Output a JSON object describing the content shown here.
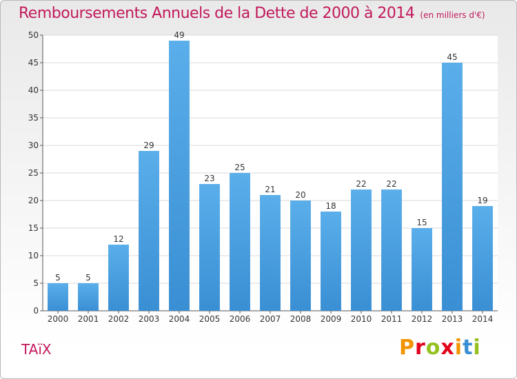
{
  "chart_data": {
    "type": "bar",
    "title": "Remboursements Annuels de la Dette de 2000 à 2014",
    "subtitle": "(en milliers d'€)",
    "categories": [
      "2000",
      "2001",
      "2002",
      "2003",
      "2004",
      "2005",
      "2006",
      "2007",
      "2008",
      "2009",
      "2010",
      "2011",
      "2012",
      "2013",
      "2014"
    ],
    "values": [
      5,
      5,
      12,
      29,
      49,
      23,
      25,
      21,
      20,
      18,
      22,
      22,
      15,
      45,
      19
    ],
    "ylim": [
      0,
      50
    ],
    "yticks": [
      0,
      5,
      10,
      15,
      20,
      25,
      30,
      35,
      40,
      45,
      50
    ],
    "grid": true,
    "bar_color": "#3a8fd4"
  },
  "footer": {
    "commune": "TAïX",
    "logo": "Proxiti",
    "logo_colors": [
      "#f29400",
      "#e2001a",
      "#95c11f",
      "#e2001a",
      "#f29400",
      "#3a8fd4",
      "#95c11f"
    ]
  }
}
